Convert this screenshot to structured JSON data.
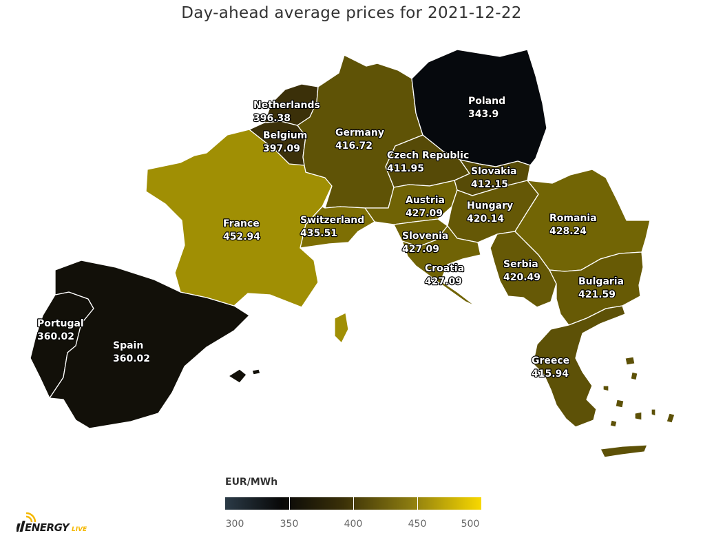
{
  "title": "Day-ahead average prices for 2021-12-22",
  "legend": {
    "title": "EUR/MWh",
    "min": 300,
    "max": 500,
    "ticks": [
      "300",
      "350",
      "400",
      "450",
      "500"
    ],
    "colors": [
      "#2b3b47",
      "#080808",
      "#3a3008",
      "#8a7a10",
      "#f8d800"
    ]
  },
  "countries": [
    {
      "name": "Poland",
      "value": "343.9",
      "color": "#06090d"
    },
    {
      "name": "Spain",
      "value": "360.02",
      "color": "#121009"
    },
    {
      "name": "Portugal",
      "value": "360.02",
      "color": "#121009"
    },
    {
      "name": "Netherlands",
      "value": "396.38",
      "color": "#3b3009"
    },
    {
      "name": "Belgium",
      "value": "397.09",
      "color": "#3c310a"
    },
    {
      "name": "Czech Republic",
      "value": "411.95",
      "color": "#564a07"
    },
    {
      "name": "Slovakia",
      "value": "412.15",
      "color": "#574b07"
    },
    {
      "name": "Greece",
      "value": "415.94",
      "color": "#5d5107"
    },
    {
      "name": "Germany",
      "value": "416.72",
      "color": "#5f5306"
    },
    {
      "name": "Hungary",
      "value": "420.14",
      "color": "#655806"
    },
    {
      "name": "Serbia",
      "value": "420.49",
      "color": "#665906"
    },
    {
      "name": "Bulgaria",
      "value": "421.59",
      "color": "#675a05"
    },
    {
      "name": "Austria",
      "value": "427.09",
      "color": "#706305"
    },
    {
      "name": "Slovenia",
      "value": "427.09",
      "color": "#706305"
    },
    {
      "name": "Croatia",
      "value": "427.09",
      "color": "#706305"
    },
    {
      "name": "Romania",
      "value": "428.24",
      "color": "#726505"
    },
    {
      "name": "Switzerland",
      "value": "435.51",
      "color": "#7e6f04"
    },
    {
      "name": "France",
      "value": "452.94",
      "color": "#a08f04"
    }
  ],
  "logo": {
    "text": "ENERGY",
    "suffix": "LIVE"
  }
}
